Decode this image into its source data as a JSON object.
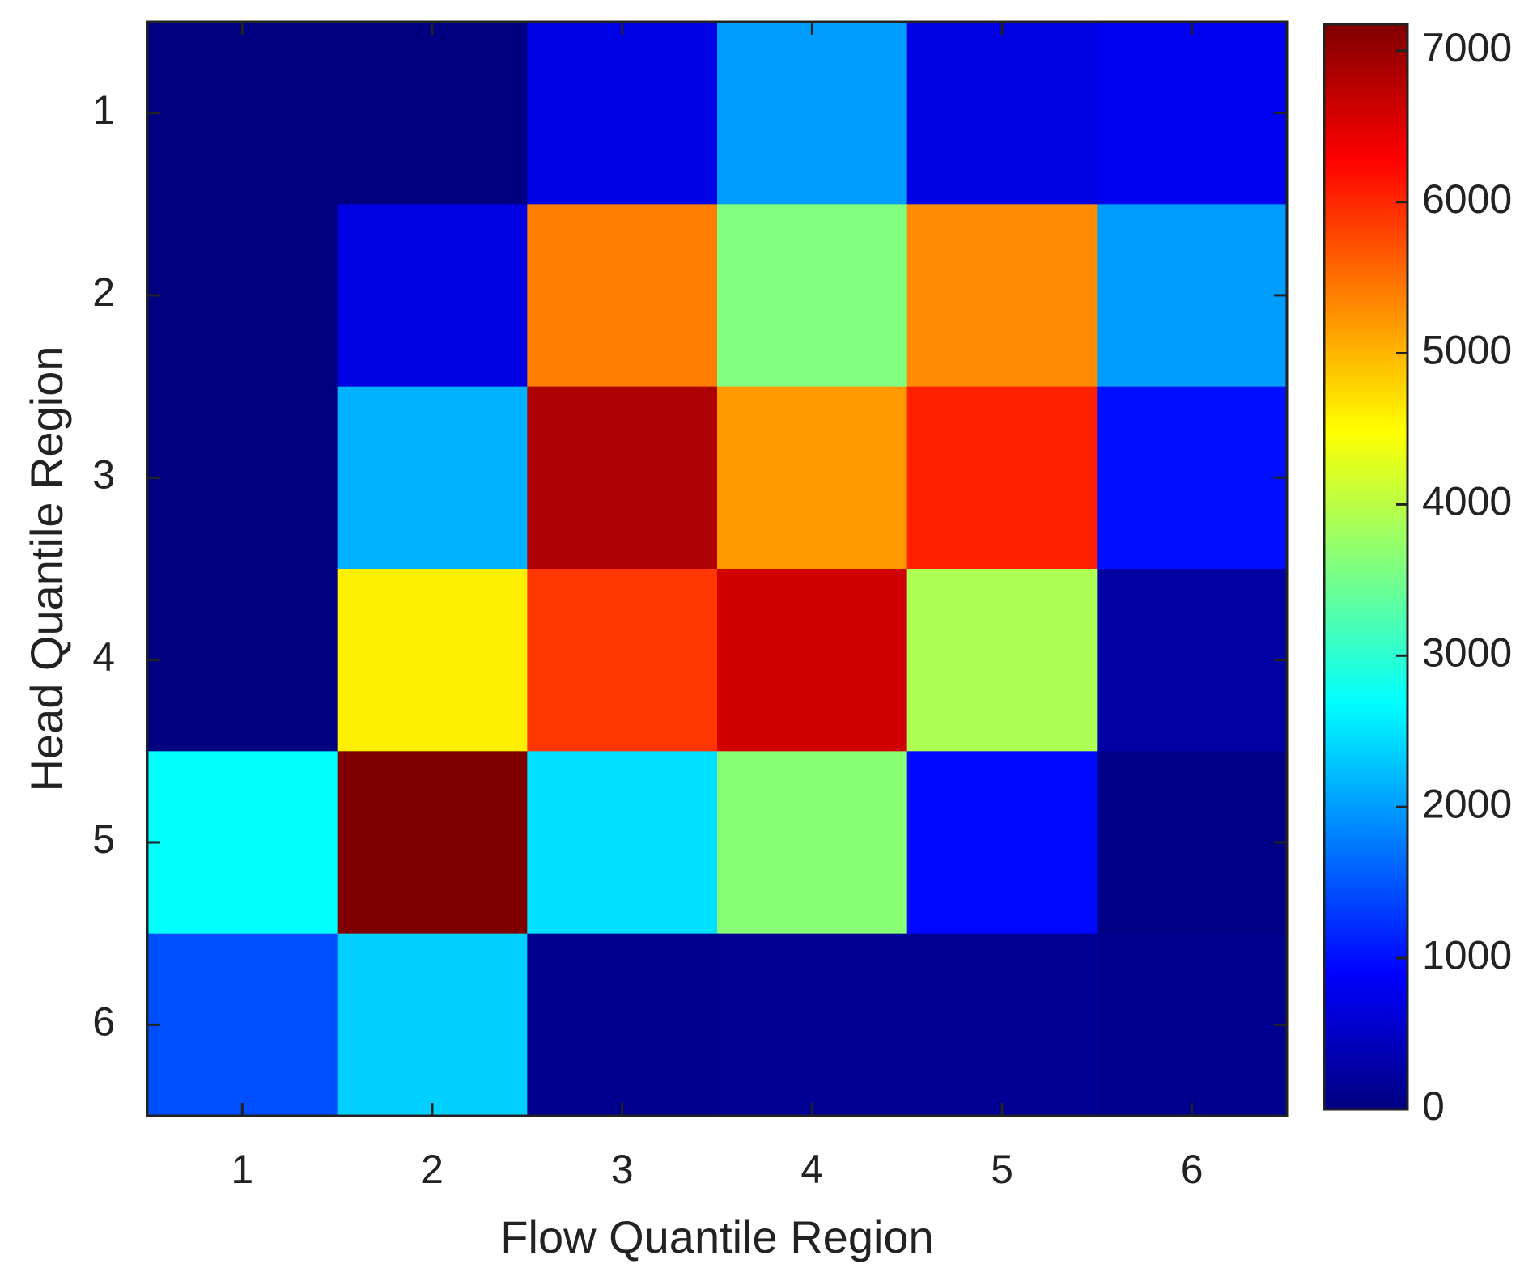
{
  "chart_data": {
    "type": "heatmap",
    "xlabel": "Flow Quantile Region",
    "ylabel": "Head Quantile Region",
    "x": [
      1,
      2,
      3,
      4,
      5,
      6
    ],
    "y": [
      1,
      2,
      3,
      4,
      5,
      6
    ],
    "z": [
      [
        0,
        0,
        720,
        2000,
        700,
        800
      ],
      [
        0,
        700,
        5400,
        3600,
        5300,
        2000
      ],
      [
        0,
        2150,
        6850,
        5200,
        6050,
        1000
      ],
      [
        0,
        4600,
        5900,
        6600,
        3900,
        250
      ],
      [
        2700,
        7175,
        2480,
        3650,
        950,
        50
      ],
      [
        1450,
        2350,
        100,
        150,
        150,
        100
      ]
    ],
    "xlim": [
      0.5,
      6.5
    ],
    "ylim": [
      6.5,
      0.5
    ],
    "xticks": [
      1,
      2,
      3,
      4,
      5,
      6
    ],
    "yticks": [
      1,
      2,
      3,
      4,
      5,
      6
    ],
    "colormap": "jet",
    "clim": [
      0,
      7175
    ],
    "cticks": [
      0,
      1000,
      2000,
      3000,
      4000,
      5000,
      6000,
      7000
    ]
  }
}
